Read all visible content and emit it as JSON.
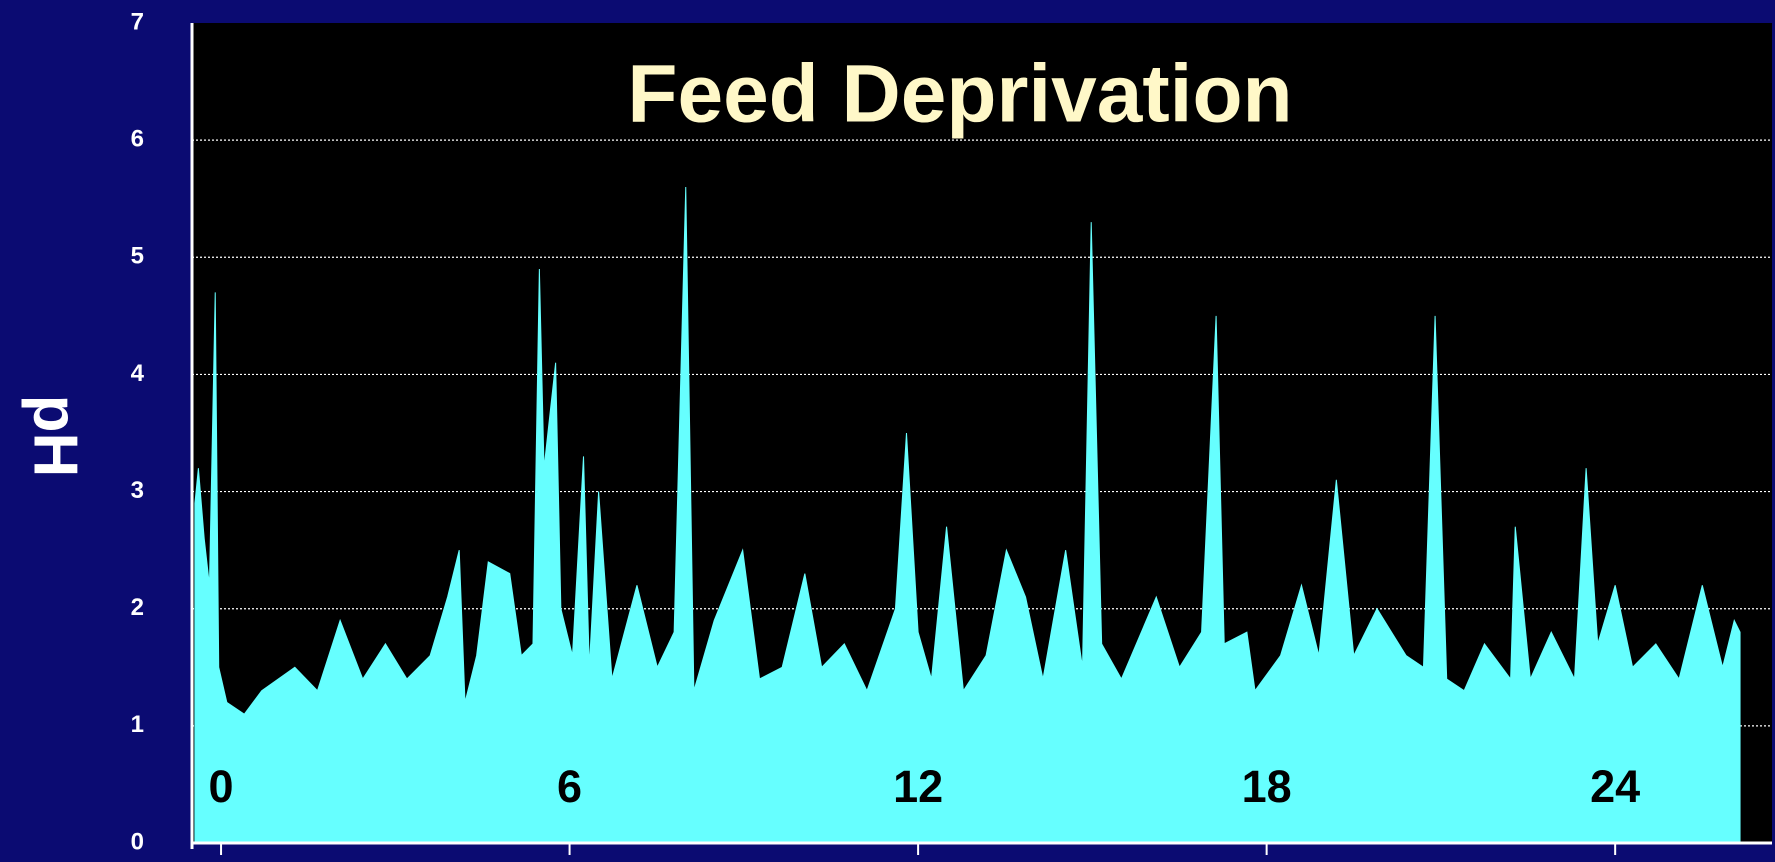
{
  "chart_data": {
    "type": "area",
    "title": "Feed Deprivation",
    "y_label": "pH",
    "x": [
      -0.45,
      -0.39,
      -0.29,
      -0.2,
      -0.1,
      -0.04,
      0.1,
      0.4,
      0.7,
      1.27,
      1.66,
      2.05,
      2.44,
      2.83,
      3.2,
      3.6,
      3.9,
      4.1,
      4.2,
      4.4,
      4.6,
      4.97,
      5.17,
      5.37,
      5.48,
      5.56,
      5.76,
      5.85,
      6.05,
      6.24,
      6.34,
      6.5,
      6.73,
      7.16,
      7.51,
      7.8,
      8.0,
      8.14,
      8.49,
      8.98,
      9.27,
      9.66,
      10.05,
      10.34,
      10.73,
      11.12,
      11.61,
      11.8,
      12.0,
      12.23,
      12.49,
      12.78,
      13.17,
      13.52,
      13.85,
      14.15,
      14.54,
      14.83,
      14.98,
      15.16,
      15.5,
      16.1,
      16.5,
      16.88,
      17.13,
      17.27,
      17.66,
      17.8,
      18.24,
      18.6,
      18.9,
      19.2,
      19.5,
      19.9,
      20.4,
      20.7,
      20.9,
      21.1,
      21.4,
      21.75,
      22.2,
      22.28,
      22.54,
      22.9,
      23.3,
      23.5,
      23.7,
      24.0,
      24.3,
      24.7,
      25.1,
      25.5,
      25.85,
      26.05,
      26.15
    ],
    "values": [
      2.9,
      3.2,
      2.6,
      2.2,
      4.7,
      1.5,
      1.2,
      1.1,
      1.3,
      1.5,
      1.3,
      1.9,
      1.4,
      1.7,
      1.4,
      1.6,
      2.1,
      2.5,
      1.2,
      1.6,
      2.4,
      2.3,
      1.6,
      1.7,
      4.9,
      3.2,
      4.1,
      2.0,
      1.6,
      3.3,
      1.5,
      3.0,
      1.4,
      2.2,
      1.5,
      1.8,
      5.6,
      1.3,
      1.9,
      2.5,
      1.4,
      1.5,
      2.3,
      1.5,
      1.7,
      1.3,
      2.0,
      3.5,
      1.8,
      1.4,
      2.7,
      1.3,
      1.6,
      2.5,
      2.1,
      1.4,
      2.5,
      1.5,
      5.3,
      1.7,
      1.4,
      2.1,
      1.5,
      1.8,
      4.5,
      1.7,
      1.8,
      1.3,
      1.6,
      2.2,
      1.6,
      3.1,
      1.6,
      2.0,
      1.6,
      1.5,
      4.5,
      1.4,
      1.3,
      1.7,
      1.4,
      2.7,
      1.4,
      1.8,
      1.4,
      3.2,
      1.7,
      2.2,
      1.5,
      1.7,
      1.4,
      2.2,
      1.5,
      1.9,
      1.8
    ],
    "color": "#66ffff",
    "xlim": [
      -0.5,
      26.7
    ],
    "xticks": [
      0,
      6,
      12,
      18,
      24
    ],
    "ylim": [
      0,
      7
    ],
    "yticks": [
      0,
      1,
      2,
      3,
      4,
      5,
      6,
      7
    ],
    "grid": true
  }
}
